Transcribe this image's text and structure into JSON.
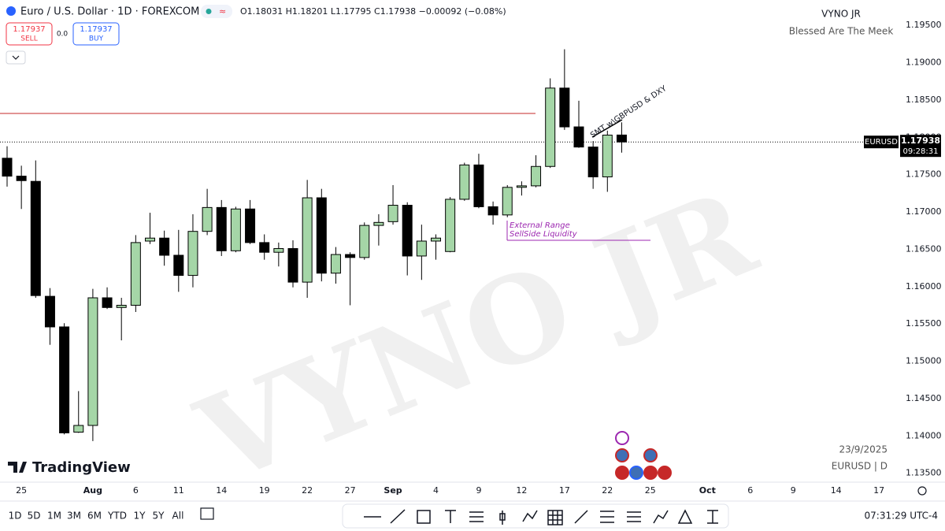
{
  "header": {
    "symbol": "Euro / U.S. Dollar · 1D · FOREXCOM",
    "ohlc": "O1.18031 H1.18201 L1.17795 C1.17938 −0.00092 (−0.08%)",
    "sell_price": "1.17937",
    "sell": "SELL",
    "spread": "0.0",
    "buy_price": "1.17937",
    "buy": "BUY"
  },
  "chart_data": {
    "type": "candlestick",
    "watermark": "VYNO JR",
    "author": "VYNO JR",
    "tagline": "Blessed Are The Meek",
    "categories": [
      null,
      "25",
      null,
      null,
      null,
      null,
      "Aug",
      null,
      null,
      "6",
      null,
      null,
      "11",
      null,
      null,
      "14",
      null,
      null,
      "19",
      null,
      null,
      "22",
      null,
      null,
      "27",
      null,
      null,
      "Sep",
      null,
      null,
      "4",
      null,
      null,
      "9",
      null,
      null,
      "12",
      null,
      null,
      "17",
      null,
      null,
      "22",
      null,
      null,
      "25",
      null,
      null,
      null,
      "Oct",
      null,
      null,
      "6",
      null,
      null,
      "9",
      null,
      null,
      "14",
      null,
      null,
      "17"
    ],
    "open": [
      1.1772,
      1.1748,
      1.1741,
      1.1587,
      1.1546,
      1.1405,
      1.1414,
      1.1585,
      1.1572,
      1.1575,
      1.1661,
      1.1665,
      1.1642,
      1.1615,
      1.1674,
      1.1706,
      1.1648,
      1.1704,
      1.1659,
      1.1646,
      1.1651,
      1.1606,
      1.1719,
      1.1618,
      1.1643,
      1.1639,
      1.1682,
      1.1687,
      1.1709,
      1.1641,
      1.1661,
      1.1647,
      1.1717,
      1.1763,
      1.1707,
      1.1696,
      1.1733,
      1.1735,
      1.1761,
      1.1866,
      1.1814,
      1.1787,
      1.1747,
      1.18031,
      null,
      null,
      null,
      null,
      null,
      null,
      null,
      null,
      null,
      null,
      null,
      null,
      null,
      null,
      null,
      null,
      null,
      null
    ],
    "high": [
      1.1788,
      1.1762,
      1.1769,
      1.1598,
      1.1551,
      1.146,
      1.1597,
      1.1599,
      1.1585,
      1.1669,
      1.1699,
      1.1675,
      1.1676,
      1.1697,
      1.1731,
      1.1716,
      1.1707,
      1.1716,
      1.167,
      1.1659,
      1.1662,
      1.1743,
      1.1731,
      1.1653,
      1.1646,
      1.1686,
      1.1697,
      1.1736,
      1.1713,
      1.1683,
      1.167,
      1.172,
      1.1766,
      1.1778,
      1.1714,
      1.1736,
      1.1741,
      1.1776,
      1.1879,
      1.1918,
      1.1849,
      1.1795,
      1.1809,
      1.18201,
      null,
      null,
      null,
      null,
      null,
      null,
      null,
      null,
      null,
      null,
      null,
      null,
      null,
      null,
      null,
      null,
      null,
      null
    ],
    "low": [
      1.1734,
      1.1704,
      1.1585,
      1.1522,
      1.1402,
      1.1404,
      1.1393,
      1.157,
      1.1528,
      1.1566,
      1.1657,
      1.1628,
      1.1593,
      1.1599,
      1.1669,
      1.1641,
      1.1646,
      1.1657,
      1.1636,
      1.1627,
      1.1599,
      1.1585,
      1.1607,
      1.1604,
      1.1575,
      1.1636,
      1.1655,
      1.1683,
      1.1615,
      1.1609,
      1.1636,
      1.1646,
      1.1715,
      1.1705,
      1.1683,
      1.1693,
      1.1722,
      1.1733,
      1.1759,
      1.181,
      1.1786,
      1.1731,
      1.1727,
      1.17795,
      null,
      null,
      null,
      null,
      null,
      null,
      null,
      null,
      null,
      null,
      null,
      null,
      null,
      null,
      null,
      null,
      null,
      null
    ],
    "close": [
      1.1748,
      1.1742,
      1.1588,
      1.1546,
      1.1404,
      1.1414,
      1.1585,
      1.1572,
      1.1575,
      1.1659,
      1.1665,
      1.1642,
      1.1615,
      1.1674,
      1.1706,
      1.1648,
      1.1704,
      1.1659,
      1.1646,
      1.1651,
      1.1606,
      1.1719,
      1.1618,
      1.1643,
      1.1639,
      1.1682,
      1.1686,
      1.1709,
      1.1641,
      1.1661,
      1.1665,
      1.1717,
      1.1763,
      1.1707,
      1.1696,
      1.1733,
      1.1735,
      1.1761,
      1.1866,
      1.1814,
      1.1787,
      1.1747,
      1.1803,
      1.17938,
      null,
      null,
      null,
      null,
      null,
      null,
      null,
      null,
      null,
      null,
      null,
      null,
      null,
      null,
      null,
      null,
      null,
      null
    ],
    "up_color": "#a5d6a7",
    "down_color": "#000000",
    "ylim": [
      1.1338,
      1.1984
    ],
    "yticks": [
      {
        "value": 1.135,
        "label": "1.13500"
      },
      {
        "value": 1.14,
        "label": "1.14000"
      },
      {
        "value": 1.145,
        "label": "1.14500"
      },
      {
        "value": 1.15,
        "label": "1.15000"
      },
      {
        "value": 1.155,
        "label": "1.15500"
      },
      {
        "value": 1.16,
        "label": "1.16000"
      },
      {
        "value": 1.165,
        "label": "1.16500"
      },
      {
        "value": 1.17,
        "label": "1.17000"
      },
      {
        "value": 1.175,
        "label": "1.17500"
      },
      {
        "value": 1.18,
        "label": "1.18000"
      },
      {
        "value": 1.185,
        "label": "1.18500"
      },
      {
        "value": 1.19,
        "label": "1.19000"
      },
      {
        "value": 1.195,
        "label": "1.19500"
      }
    ],
    "grid": false,
    "last_price": 1.17938,
    "symbol_label": "EURUSD",
    "countdown": "09:28:31",
    "levels": [
      {
        "value": 1.1832,
        "color": "#c62828"
      },
      {
        "value": 1.1662,
        "color": "#9c27b0"
      }
    ],
    "annotations": [
      "SMT w\\GBPUSD & DXY",
      "External Range",
      "SellSide Liquidity"
    ],
    "date_label": "23/9/2025",
    "symbol_interval": "EURUSD | D"
  },
  "footer": {
    "brand": "TradingView",
    "timeframes": [
      "1D",
      "5D",
      "1M",
      "3M",
      "6M",
      "YTD",
      "1Y",
      "5Y",
      "All"
    ],
    "clock": "07:31:29 UTC-4"
  }
}
